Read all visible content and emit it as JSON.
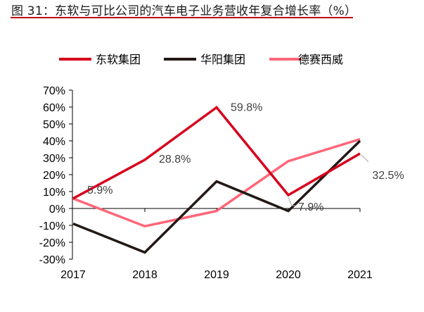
{
  "title": "图 31：东软与可比公司的汽车电子业务营收年复合增长率（%）",
  "colors": {
    "title_rule": "#c00000",
    "axis": "#000000",
    "leader": "#a6a6a6"
  },
  "chart_data": {
    "type": "line",
    "title": "东软与可比公司的汽车电子业务营收年复合增长率（%）",
    "xlabel": "",
    "ylabel": "",
    "x": [
      "2017",
      "2018",
      "2019",
      "2020",
      "2021"
    ],
    "ylim": [
      -30,
      70
    ],
    "yticks": [
      70,
      60,
      50,
      40,
      30,
      20,
      10,
      0,
      -10,
      -20,
      -30
    ],
    "ytick_labels": [
      "70%",
      "60%",
      "50%",
      "40%",
      "30%",
      "20%",
      "10%",
      "0%",
      "-10%",
      "-20%",
      "-30%"
    ],
    "grid": false,
    "legend_position": "top",
    "series": [
      {
        "name": "东软集团",
        "color": "#d6001c",
        "values": [
          5.9,
          28.8,
          59.8,
          7.9,
          32.5
        ]
      },
      {
        "name": "华阳集团",
        "color": "#231815",
        "values": [
          -9,
          -26,
          16,
          -1.5,
          40
        ]
      },
      {
        "name": "德赛西威",
        "color": "#ff6678",
        "values": [
          5.9,
          -10.5,
          -1.5,
          28,
          41
        ]
      }
    ],
    "annotations": [
      {
        "series": "东软集团",
        "x": "2017",
        "text": "5.9%"
      },
      {
        "series": "东软集团",
        "x": "2018",
        "text": "28.8%"
      },
      {
        "series": "东软集团",
        "x": "2019",
        "text": "59.8%"
      },
      {
        "series": "东软集团",
        "x": "2020",
        "text": "7.9%"
      },
      {
        "series": "东软集团",
        "x": "2021",
        "text": "32.5%"
      }
    ]
  }
}
